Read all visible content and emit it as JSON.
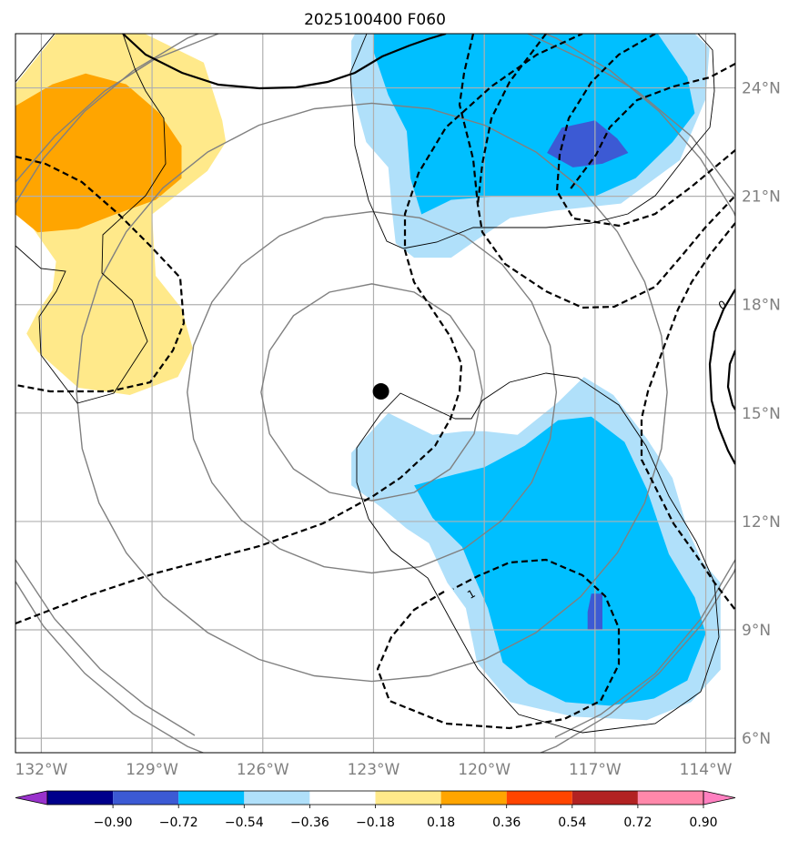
{
  "chart_data": {
    "type": "contour-map",
    "title": "2025100400 F060",
    "lon_range": [
      -132.7,
      -113.2
    ],
    "lat_range": [
      5.6,
      25.5
    ],
    "x_ticks": [
      {
        "value": -132,
        "label": "132°W"
      },
      {
        "value": -129,
        "label": "129°W"
      },
      {
        "value": -126,
        "label": "126°W"
      },
      {
        "value": -123,
        "label": "123°W"
      },
      {
        "value": -120,
        "label": "120°W"
      },
      {
        "value": -117,
        "label": "117°W"
      },
      {
        "value": -114,
        "label": "114°W"
      }
    ],
    "y_ticks": [
      {
        "value": 6,
        "label": "6°N"
      },
      {
        "value": 9,
        "label": "9°N"
      },
      {
        "value": 12,
        "label": "12°N"
      },
      {
        "value": 15,
        "label": "15°N"
      },
      {
        "value": 18,
        "label": "18°N"
      },
      {
        "value": 21,
        "label": "21°N"
      },
      {
        "value": 24,
        "label": "24°N"
      }
    ],
    "storm_center": {
      "lon": -122.8,
      "lat": 15.6
    },
    "range_rings_deg": [
      3,
      5,
      8,
      11
    ],
    "contour_labels": [
      {
        "text": "1",
        "lon": -120.3,
        "lat": 9.9
      },
      {
        "text": "0",
        "lon": -113.5,
        "lat": 17.9
      }
    ],
    "fill_regions": [
      {
        "level": "0.18-0.36",
        "color": "#ffe98a",
        "lonlat": [
          [
            -132.7,
            24.1
          ],
          [
            -131.6,
            25.5
          ],
          [
            -129.2,
            25.5
          ],
          [
            -127.6,
            24.7
          ],
          [
            -127.1,
            23.1
          ],
          [
            -127.0,
            22.5
          ],
          [
            -127.5,
            21.7
          ],
          [
            -129.0,
            20.5
          ],
          [
            -128.9,
            18.8
          ],
          [
            -128.2,
            17.9
          ],
          [
            -127.9,
            16.8
          ],
          [
            -128.3,
            16.0
          ],
          [
            -129.6,
            15.5
          ],
          [
            -131.0,
            15.7
          ],
          [
            -132.1,
            16.7
          ],
          [
            -132.4,
            17.2
          ],
          [
            -132.1,
            17.8
          ],
          [
            -131.7,
            18.4
          ],
          [
            -131.6,
            19.2
          ],
          [
            -132.7,
            20.8
          ]
        ]
      },
      {
        "level": "0.36-0.54",
        "color": "#ffa500",
        "lonlat": [
          [
            -132.7,
            23.5
          ],
          [
            -131.7,
            24.1
          ],
          [
            -130.8,
            24.4
          ],
          [
            -129.7,
            24.1
          ],
          [
            -128.8,
            23.3
          ],
          [
            -128.2,
            22.4
          ],
          [
            -128.2,
            21.5
          ],
          [
            -128.9,
            20.9
          ],
          [
            -130.0,
            20.5
          ],
          [
            -131.0,
            20.1
          ],
          [
            -132.1,
            20.0
          ],
          [
            -132.7,
            20.5
          ]
        ]
      },
      {
        "level": "-0.36--0.18",
        "color": "#b0e0fa",
        "lonlat": [
          [
            -123.5,
            25.5
          ],
          [
            -114.3,
            25.5
          ],
          [
            -113.9,
            25.1
          ],
          [
            -114.0,
            23.7
          ],
          [
            -114.7,
            22.0
          ],
          [
            -116.3,
            20.8
          ],
          [
            -118.1,
            20.6
          ],
          [
            -119.3,
            20.4
          ],
          [
            -120.2,
            19.8
          ],
          [
            -120.9,
            19.3
          ],
          [
            -121.9,
            19.3
          ],
          [
            -122.4,
            19.7
          ],
          [
            -122.5,
            20.6
          ],
          [
            -122.6,
            21.8
          ],
          [
            -123.2,
            22.5
          ],
          [
            -123.6,
            24.0
          ],
          [
            -123.6,
            25.3
          ]
        ]
      },
      {
        "level": "-0.54--0.36",
        "color": "#00bfff",
        "lonlat": [
          [
            -123.0,
            25.5
          ],
          [
            -115.3,
            25.5
          ],
          [
            -114.5,
            24.3
          ],
          [
            -114.3,
            23.3
          ],
          [
            -114.9,
            22.5
          ],
          [
            -115.9,
            21.5
          ],
          [
            -117.0,
            21.0
          ],
          [
            -118.4,
            21.0
          ],
          [
            -119.7,
            21.0
          ],
          [
            -120.9,
            20.9
          ],
          [
            -121.7,
            20.5
          ],
          [
            -122.0,
            21.5
          ],
          [
            -122.1,
            22.8
          ],
          [
            -122.6,
            23.8
          ],
          [
            -123.0,
            25.0
          ]
        ]
      },
      {
        "level": "-0.72--0.54",
        "color": "#3c5ad4",
        "lonlat": [
          [
            -118.3,
            22.2
          ],
          [
            -117.9,
            22.9
          ],
          [
            -117.0,
            23.1
          ],
          [
            -116.4,
            22.6
          ],
          [
            -116.1,
            22.2
          ],
          [
            -116.8,
            21.9
          ],
          [
            -117.6,
            21.8
          ]
        ]
      },
      {
        "level": "-0.36--0.18",
        "color": "#b0e0fa",
        "lonlat": [
          [
            -123.6,
            13.9
          ],
          [
            -122.6,
            15.0
          ],
          [
            -121.4,
            14.4
          ],
          [
            -120.5,
            14.5
          ],
          [
            -120.0,
            14.5
          ],
          [
            -119.1,
            14.4
          ],
          [
            -118.0,
            15.3
          ],
          [
            -117.3,
            16.0
          ],
          [
            -116.5,
            15.5
          ],
          [
            -115.6,
            14.3
          ],
          [
            -114.9,
            13.2
          ],
          [
            -114.5,
            11.8
          ],
          [
            -114.1,
            10.9
          ],
          [
            -113.6,
            10.3
          ],
          [
            -113.6,
            7.9
          ],
          [
            -114.4,
            7.0
          ],
          [
            -115.6,
            6.5
          ],
          [
            -117.6,
            6.6
          ],
          [
            -119.3,
            7.0
          ],
          [
            -120.2,
            8.1
          ],
          [
            -120.5,
            9.6
          ],
          [
            -121.0,
            10.3
          ],
          [
            -121.5,
            11.4
          ],
          [
            -122.1,
            11.8
          ],
          [
            -122.8,
            12.4
          ],
          [
            -123.6,
            13.0
          ]
        ]
      },
      {
        "level": "-0.54--0.36",
        "color": "#00bfff",
        "lonlat": [
          [
            -121.9,
            13.0
          ],
          [
            -120.8,
            13.3
          ],
          [
            -120.0,
            13.5
          ],
          [
            -118.9,
            14.1
          ],
          [
            -118.0,
            14.8
          ],
          [
            -117.1,
            14.9
          ],
          [
            -116.2,
            14.2
          ],
          [
            -115.6,
            12.9
          ],
          [
            -115.0,
            11.1
          ],
          [
            -114.3,
            9.9
          ],
          [
            -114.0,
            8.9
          ],
          [
            -114.5,
            7.6
          ],
          [
            -115.4,
            7.1
          ],
          [
            -116.6,
            6.9
          ],
          [
            -117.8,
            7.0
          ],
          [
            -118.8,
            7.5
          ],
          [
            -119.5,
            8.1
          ],
          [
            -119.9,
            9.6
          ],
          [
            -120.2,
            10.3
          ],
          [
            -120.6,
            11.3
          ],
          [
            -121.4,
            12.1
          ]
        ]
      },
      {
        "level": "-0.72--0.54",
        "color": "#3c5ad4",
        "lonlat": [
          [
            -117.2,
            9.5
          ],
          [
            -117.1,
            10.0
          ],
          [
            -116.8,
            10.0
          ],
          [
            -116.8,
            9.0
          ],
          [
            -117.2,
            9.0
          ]
        ]
      }
    ],
    "colorbar": {
      "ticks": [
        "−0.90",
        "−0.72",
        "−0.54",
        "−0.36",
        "−0.18",
        "0.18",
        "0.36",
        "0.54",
        "0.72",
        "0.90"
      ],
      "colors": [
        "#9932cc",
        "#00008b",
        "#3c5ad4",
        "#00bfff",
        "#b0e0fa",
        "#ffffff",
        "#ffe98a",
        "#ffa500",
        "#ff4500",
        "#b22222",
        "#ff88aa",
        "#ff80c0"
      ],
      "extend": "both"
    }
  }
}
